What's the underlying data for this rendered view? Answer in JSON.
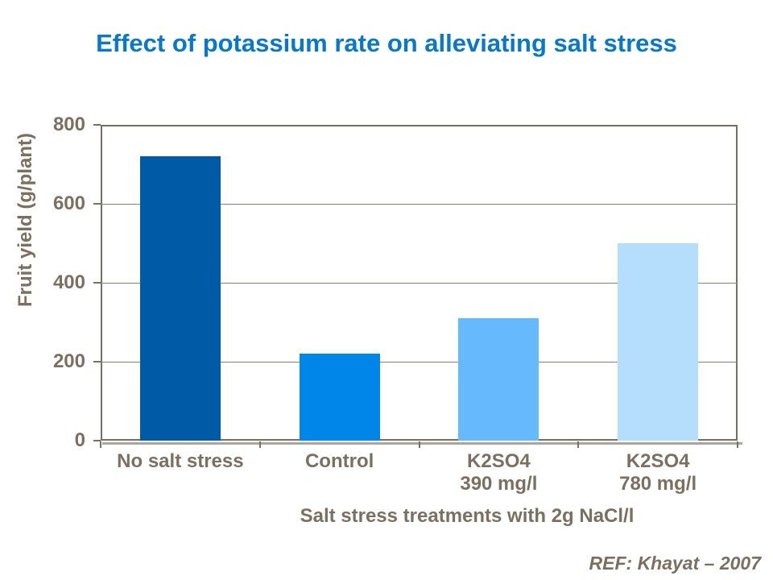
{
  "title": "Effect of potassium rate on alleviating salt stress",
  "ref_label": "REF: Khayat – 2007",
  "colors": {
    "title_text": "#0878C8",
    "axis_text": "#7C6F5F",
    "plot_border": "#7B6E5E",
    "gridline": "#8A8070",
    "tick_mark": "#7B6E5E",
    "axis_shadow": "#ABA69D",
    "background": "#FFFFFF"
  },
  "chart_data": {
    "type": "bar",
    "title": "Effect of potassium rate on alleviating salt stress",
    "categories": [
      "No salt stress",
      "Control",
      "K2SO4\n390 mg/l",
      "K2SO4\n780 mg/l"
    ],
    "values": [
      720,
      220,
      310,
      500
    ],
    "bar_colors": [
      "#005AA5",
      "#0086E8",
      "#66B9FC",
      "#B5DDFC"
    ],
    "xlabel": "Salt stress treatments with 2g NaCl/l",
    "ylabel": "Fruit yield (g/plant)",
    "ylim": [
      0,
      800
    ],
    "yticks": [
      0,
      200,
      400,
      600,
      800
    ],
    "grid": "horizontal",
    "legend": "none",
    "annotation": "REF: Khayat – 2007"
  }
}
